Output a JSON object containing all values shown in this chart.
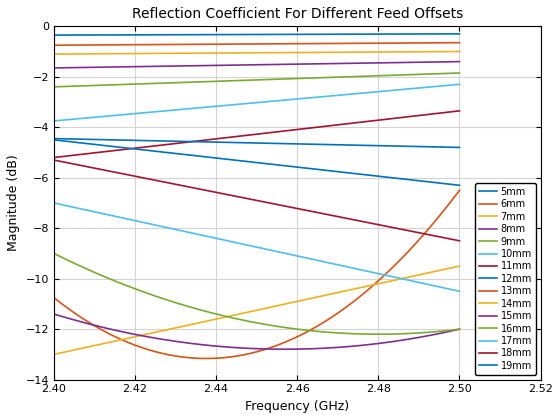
{
  "title": "Reflection Coefficient For Different Feed Offsets",
  "xlabel": "Frequency (GHz)",
  "ylabel": "Magnitude (dB)",
  "xlim": [
    2.4,
    2.52
  ],
  "ylim": [
    -14,
    0
  ],
  "xticks": [
    2.4,
    2.42,
    2.44,
    2.46,
    2.48,
    2.5,
    2.52
  ],
  "yticks": [
    0,
    -2,
    -4,
    -6,
    -8,
    -10,
    -12,
    -14
  ],
  "figsize": [
    5.6,
    4.2
  ],
  "dpi": 100,
  "lines": [
    {
      "label": "5mm",
      "color": "#0072BD",
      "y0": -0.35,
      "y1": -0.3,
      "shape": "lin",
      "ymin": null,
      "tmin": null
    },
    {
      "label": "6mm",
      "color": "#D95319",
      "y0": -0.75,
      "y1": -0.65,
      "shape": "lin",
      "ymin": null,
      "tmin": null
    },
    {
      "label": "7mm",
      "color": "#EDB120",
      "y0": -1.1,
      "y1": -1.0,
      "shape": "lin",
      "ymin": null,
      "tmin": null
    },
    {
      "label": "8mm",
      "color": "#7E2F8E",
      "y0": -1.65,
      "y1": -1.4,
      "shape": "lin",
      "ymin": null,
      "tmin": null
    },
    {
      "label": "9mm",
      "color": "#77AC30",
      "y0": -2.4,
      "y1": -1.85,
      "shape": "lin",
      "ymin": null,
      "tmin": null
    },
    {
      "label": "10mm",
      "color": "#4DBEEE",
      "y0": -3.75,
      "y1": -2.3,
      "shape": "lin",
      "ymin": null,
      "tmin": null
    },
    {
      "label": "11mm",
      "color": "#A2142F",
      "y0": -5.2,
      "y1": -3.35,
      "shape": "lin",
      "ymin": null,
      "tmin": null
    },
    {
      "label": "12mm",
      "color": "#0072BD",
      "y0": -4.5,
      "y1": -6.3,
      "shape": "lin",
      "ymin": null,
      "tmin": null
    },
    {
      "label": "13mm",
      "color": "#D95319",
      "y0": -10.75,
      "y1": -6.5,
      "shape": "parab",
      "ymin": -12.5,
      "tmin": 0.32
    },
    {
      "label": "14mm",
      "color": "#EDB120",
      "y0": -13.0,
      "y1": -9.5,
      "shape": "parab",
      "ymin": -13.0,
      "tmin": 0.05
    },
    {
      "label": "15mm",
      "color": "#7E2F8E",
      "y0": -11.4,
      "y1": -12.0,
      "shape": "parab",
      "ymin": -12.7,
      "tmin": 0.55
    },
    {
      "label": "16mm",
      "color": "#77AC30",
      "y0": -9.0,
      "y1": -12.0,
      "shape": "parab",
      "ymin": -12.2,
      "tmin": 0.8
    },
    {
      "label": "17mm",
      "color": "#4DBEEE",
      "y0": -7.0,
      "y1": -10.5,
      "shape": "lin",
      "ymin": null,
      "tmin": null
    },
    {
      "label": "18mm",
      "color": "#A2142F",
      "y0": -5.3,
      "y1": -8.5,
      "shape": "lin",
      "ymin": null,
      "tmin": null
    },
    {
      "label": "19mm",
      "color": "#0072BD",
      "y0": -4.45,
      "y1": -4.8,
      "shape": "lin",
      "ymin": null,
      "tmin": null
    }
  ]
}
